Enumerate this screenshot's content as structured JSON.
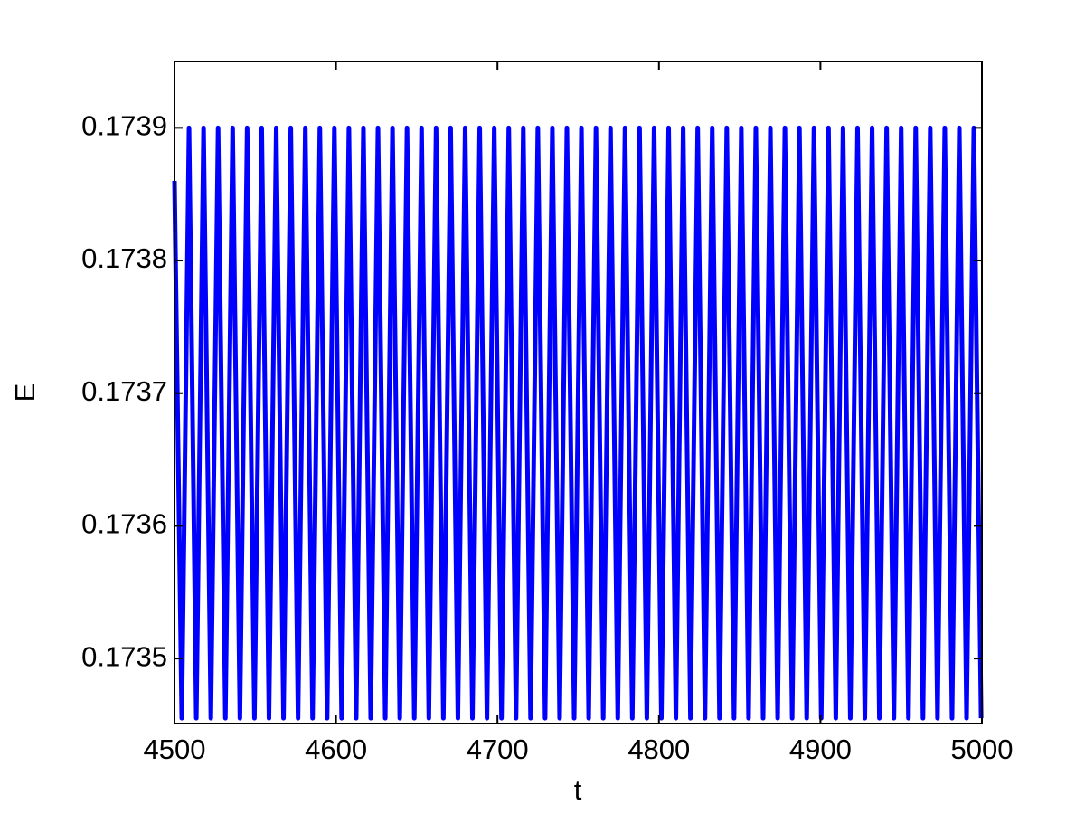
{
  "chart_data": {
    "type": "line",
    "xlabel": "t",
    "ylabel": "E",
    "color": "#0000ff",
    "x": [
      4500,
      4504.5,
      4509,
      4513.5,
      4518,
      4522.5,
      4527,
      4531.5,
      4536,
      4540.5,
      4545,
      4549.5,
      4554,
      4558.5,
      4563,
      4567.5,
      4572,
      4576.5,
      4581,
      4585.5,
      4590,
      4594.5,
      4599,
      4603.5,
      4608,
      4612.5,
      4617,
      4621.5,
      4626,
      4630.5,
      4635,
      4639.5,
      4644,
      4648.5,
      4653,
      4657.5,
      4662,
      4666.5,
      4671,
      4675.5,
      4680,
      4684.5,
      4689,
      4693.5,
      4698,
      4702.5,
      4707,
      4711.5,
      4716,
      4720.5,
      4725,
      4729.5,
      4734,
      4738.5,
      4743,
      4747.5,
      4752,
      4756.5,
      4761,
      4765.5,
      4770,
      4774.5,
      4779,
      4783.5,
      4788,
      4792.5,
      4797,
      4801.5,
      4806,
      4810.5,
      4815,
      4819.5,
      4824,
      4828.5,
      4833,
      4837.5,
      4842,
      4846.5,
      4851,
      4855.5,
      4860,
      4864.5,
      4869,
      4873.5,
      4878,
      4882.5,
      4887,
      4891.5,
      4896,
      4900.5,
      4905,
      4909.5,
      4914,
      4918.5,
      4923,
      4927.5,
      4932,
      4936.5,
      4941,
      4945.5,
      4950,
      4954.5,
      4959,
      4963.5,
      4968,
      4972.5,
      4977,
      4981.5,
      4986,
      4990.5,
      4995,
      4999.5
    ],
    "values": [
      0.17386,
      0.173455,
      0.1739,
      0.173455,
      0.1739,
      0.173455,
      0.1739,
      0.173455,
      0.1739,
      0.173455,
      0.1739,
      0.173455,
      0.1739,
      0.173455,
      0.1739,
      0.173455,
      0.1739,
      0.173455,
      0.1739,
      0.173455,
      0.1739,
      0.173455,
      0.1739,
      0.173455,
      0.1739,
      0.173455,
      0.1739,
      0.173455,
      0.1739,
      0.173455,
      0.1739,
      0.173455,
      0.1739,
      0.173455,
      0.1739,
      0.173455,
      0.1739,
      0.173455,
      0.1739,
      0.173455,
      0.1739,
      0.173455,
      0.1739,
      0.173455,
      0.1739,
      0.173455,
      0.1739,
      0.173455,
      0.1739,
      0.173455,
      0.1739,
      0.173455,
      0.1739,
      0.173455,
      0.1739,
      0.173455,
      0.1739,
      0.173455,
      0.1739,
      0.173455,
      0.1739,
      0.173455,
      0.1739,
      0.173455,
      0.1739,
      0.173455,
      0.1739,
      0.173455,
      0.1739,
      0.173455,
      0.1739,
      0.173455,
      0.1739,
      0.173455,
      0.1739,
      0.173455,
      0.1739,
      0.173455,
      0.1739,
      0.173455,
      0.1739,
      0.173455,
      0.1739,
      0.173455,
      0.1739,
      0.173455,
      0.1739,
      0.173455,
      0.1739,
      0.173455,
      0.1739,
      0.173455,
      0.1739,
      0.173455,
      0.1739,
      0.173455,
      0.1739,
      0.173455,
      0.1739,
      0.173455,
      0.1739,
      0.173455,
      0.1739,
      0.173455,
      0.1739,
      0.173455,
      0.1739,
      0.173455,
      0.1739,
      0.173455,
      0.1739,
      0.173455
    ],
    "xlim": [
      4500,
      5000
    ],
    "xticks": [
      4500,
      4600,
      4700,
      4800,
      4900,
      5000
    ],
    "ylim": [
      0.173451,
      0.17395
    ],
    "yticks": [
      0.1735,
      0.1736,
      0.1737,
      0.1738,
      0.1739
    ]
  }
}
